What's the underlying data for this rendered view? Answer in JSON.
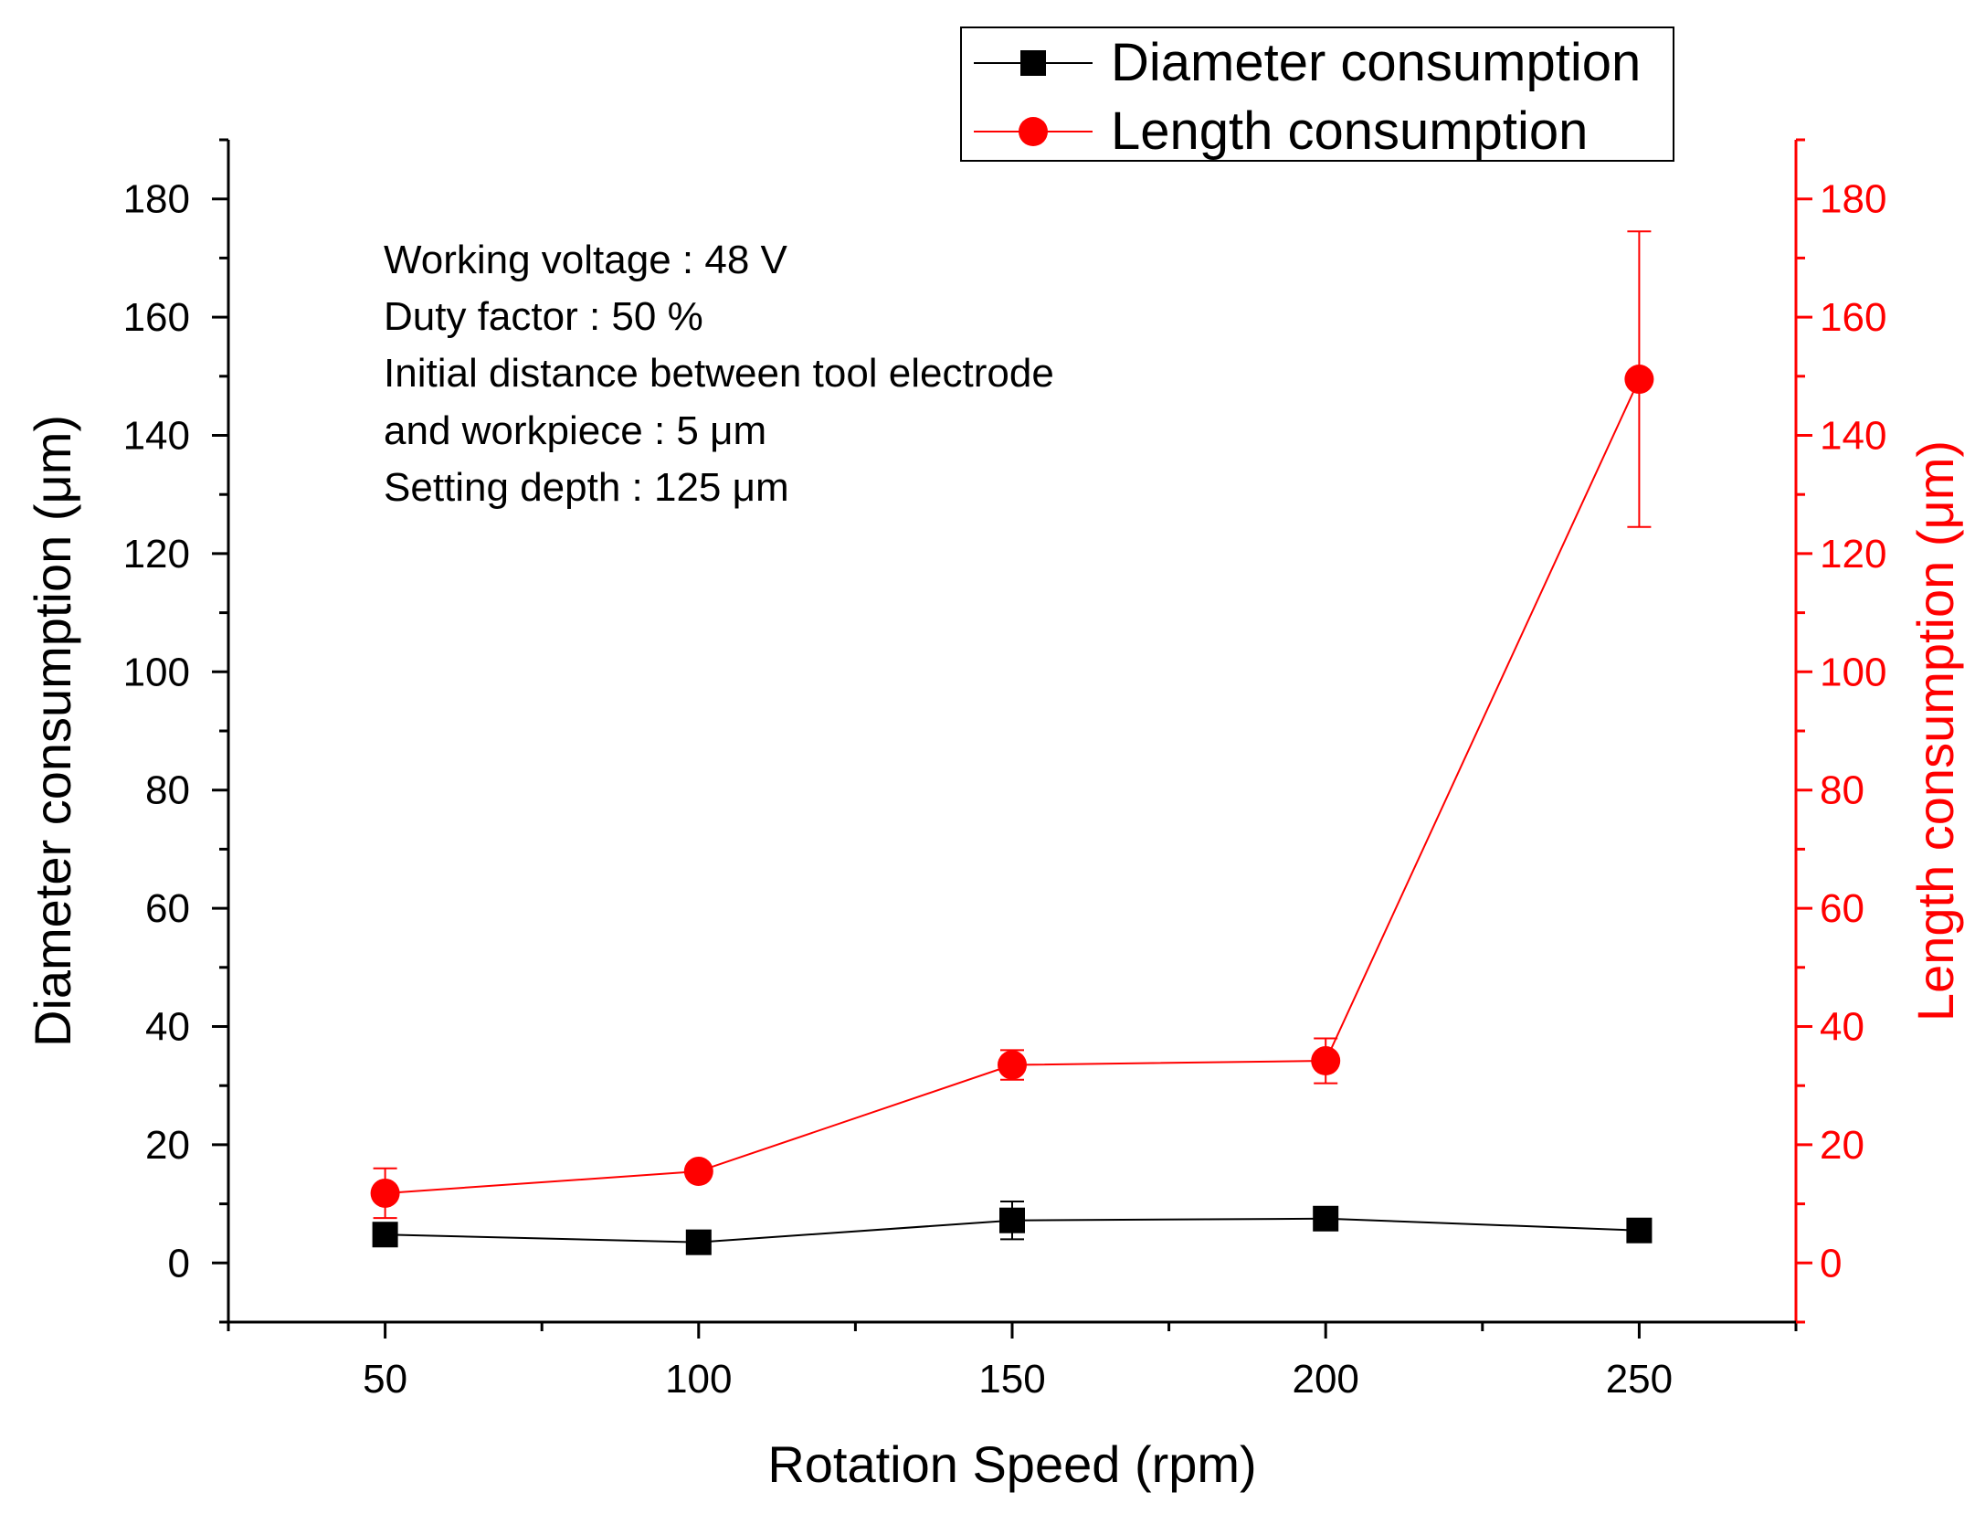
{
  "chart_data": {
    "type": "line",
    "title": "",
    "xlabel": "Rotation Speed (rpm)",
    "ylabel_left": "Diameter consumption (μm)",
    "ylabel_right": "Length consumption (μm)",
    "x": [
      50,
      100,
      150,
      200,
      250
    ],
    "xlim": [
      25,
      275
    ],
    "ylim": [
      -10,
      190
    ],
    "x_ticks": [
      50,
      100,
      150,
      200,
      250
    ],
    "y_ticks": [
      0,
      20,
      40,
      60,
      80,
      100,
      120,
      140,
      160,
      180
    ],
    "grid": false,
    "legend_position": "top-right",
    "series": [
      {
        "name": "Diameter consumption",
        "axis": "left",
        "color": "#000000",
        "marker": "square",
        "values": [
          4.8,
          3.5,
          7.2,
          7.5,
          5.5
        ],
        "errors": [
          0.4,
          0.5,
          3.2,
          0.6,
          0.4
        ]
      },
      {
        "name": "Length consumption",
        "axis": "right",
        "color": "#ff0000",
        "marker": "circle",
        "values": [
          11.8,
          15.5,
          33.5,
          34.2,
          149.5
        ],
        "errors": [
          4.2,
          0.8,
          2.5,
          3.8,
          25.0
        ]
      }
    ],
    "annotations": [
      "Working voltage : 48 V",
      "Duty factor : 50 %",
      "Initial distance between tool electrode",
      "and workpiece : 5 μm",
      "Setting depth : 125 μm"
    ]
  }
}
